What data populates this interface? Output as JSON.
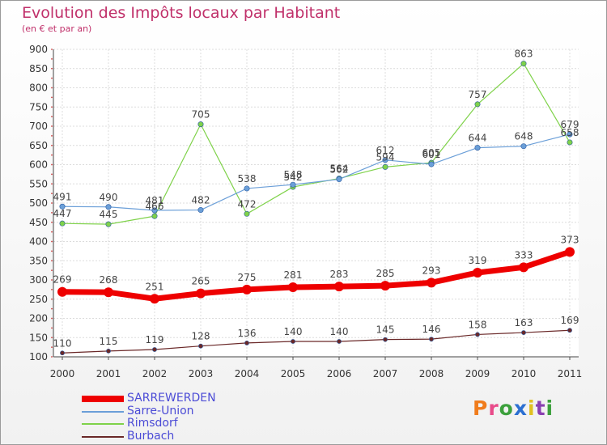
{
  "title": "Evolution des Impôts locaux par Habitant",
  "subtitle": "(en € et par an)",
  "logo": {
    "text": "Proxiti",
    "letters": [
      "P",
      "r",
      "o",
      "x",
      "i",
      "t",
      "i"
    ],
    "colors": [
      "#f07c1c",
      "#e84b8a",
      "#3ca03c",
      "#2b6fd1",
      "#e0c020",
      "#8a3fb0",
      "#3ca03c"
    ]
  },
  "chart_data": {
    "type": "line",
    "x": [
      "2000",
      "2001",
      "2002",
      "2003",
      "2004",
      "2005",
      "2006",
      "2007",
      "2008",
      "2009",
      "2010",
      "2011"
    ],
    "ylim": [
      100,
      900
    ],
    "yticks": [
      100,
      150,
      200,
      250,
      300,
      350,
      400,
      450,
      500,
      550,
      600,
      650,
      700,
      750,
      800,
      850,
      900
    ],
    "grid": true,
    "legend_position": "bottom-left",
    "series": [
      {
        "name": "SARREWERDEN",
        "color": "#ee0000",
        "values": [
          269,
          268,
          251,
          265,
          275,
          281,
          283,
          285,
          293,
          319,
          333,
          373
        ]
      },
      {
        "name": "Sarre-Union",
        "color": "#6b9fd8",
        "values": [
          491,
          490,
          481,
          482,
          538,
          548,
          562,
          612,
          601,
          644,
          648,
          679
        ]
      },
      {
        "name": "Rimsdorf",
        "color": "#7fd24a",
        "values": [
          447,
          445,
          466,
          705,
          472,
          542,
          564,
          594,
          605,
          757,
          863,
          658
        ]
      },
      {
        "name": "Burbach",
        "color": "#6a2828",
        "values": [
          110,
          115,
          119,
          128,
          136,
          140,
          140,
          145,
          146,
          158,
          163,
          169
        ]
      }
    ]
  }
}
